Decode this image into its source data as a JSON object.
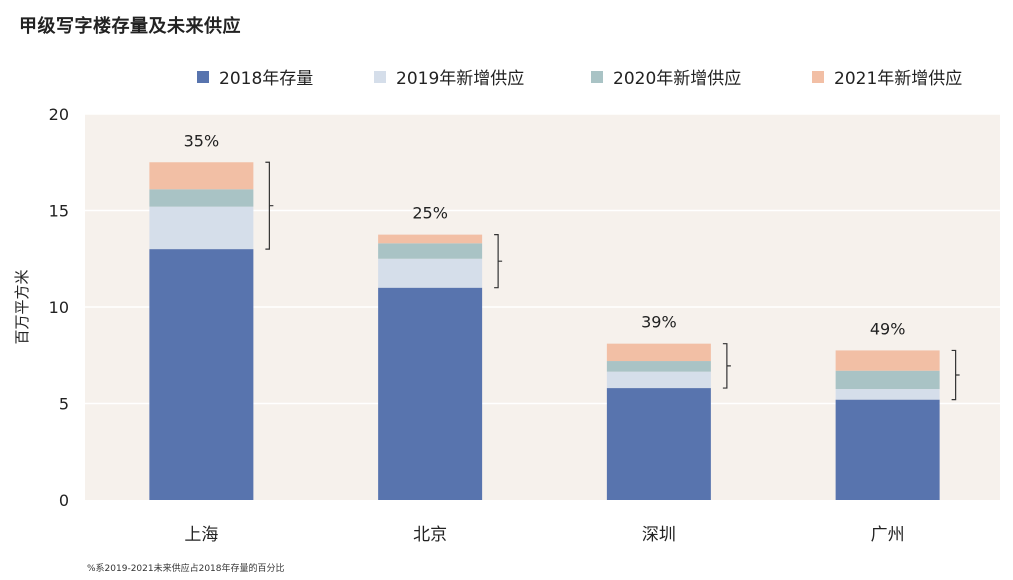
{
  "title": "甲级写字楼存量及未来供应",
  "footnote": "%系2019-2021未来供应占2018年存量的百分比",
  "colors": {
    "plot_bg": "#f6f1ec",
    "grid": "#ffffff",
    "bracket": "#333333"
  },
  "chart_data": {
    "type": "bar",
    "stacked": true,
    "categories": [
      "上海",
      "北京",
      "深圳",
      "广州"
    ],
    "series": [
      {
        "name": "2018年存量",
        "color": "#5874ae",
        "values": [
          13.0,
          11.0,
          5.8,
          5.2
        ]
      },
      {
        "name": "2019年新增供应",
        "color": "#d5deea",
        "values": [
          2.2,
          1.5,
          0.85,
          0.55
        ]
      },
      {
        "name": "2020年新增供应",
        "color": "#a9c3c5",
        "values": [
          0.9,
          0.8,
          0.55,
          0.95
        ]
      },
      {
        "name": "2021年新增供应",
        "color": "#f2bfa5",
        "values": [
          1.4,
          0.45,
          0.9,
          1.05
        ]
      }
    ],
    "annotations": [
      "35%",
      "25%",
      "39%",
      "49%"
    ],
    "ylabel": "百万平方米",
    "ylim": [
      0,
      20
    ],
    "yticks": [
      "0",
      "5",
      "10",
      "15",
      "20"
    ],
    "grid": true,
    "legend_position": "top"
  }
}
